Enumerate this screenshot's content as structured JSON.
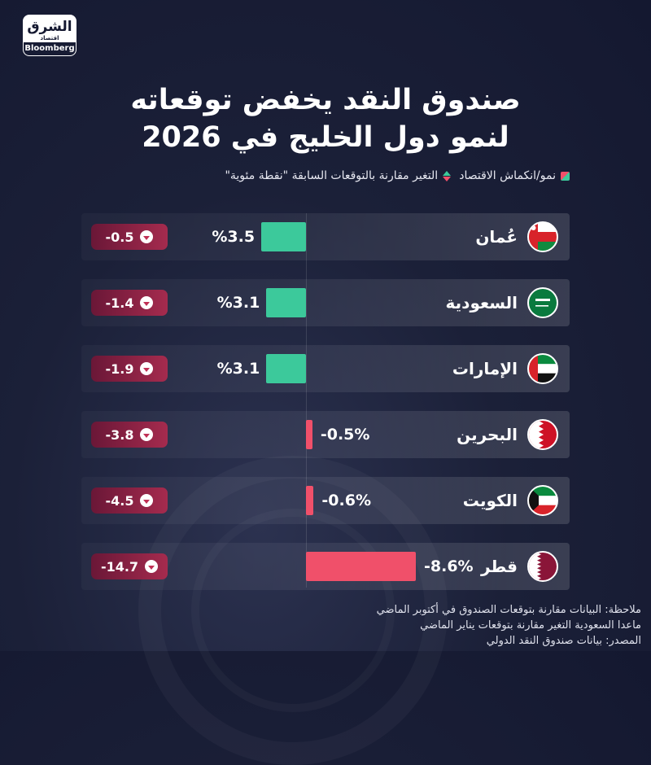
{
  "logo": {
    "arabic": "الشرق",
    "sub": "اقتصاد",
    "brand": "Bloomberg"
  },
  "title_line1": "صندوق النقد يخفض توقعاته",
  "title_line2": "لنمو دول الخليج في 2026",
  "legend": {
    "growth": "نمو/انكماش الاقتصاد",
    "change": "التغير مقارنة بالتوقعات السابقة \"نقطة مئوية\""
  },
  "colors": {
    "positive": "#3cc99b",
    "negative": "#f0506a",
    "badge": "#a52b4e"
  },
  "chart_data": {
    "type": "bar",
    "orientation": "horizontal",
    "categories": [
      "عُمان",
      "السعودية",
      "الإمارات",
      "البحرين",
      "الكويت",
      "قطر"
    ],
    "series": [
      {
        "name": "نمو/انكماش الاقتصاد",
        "values": [
          3.5,
          3.1,
          3.1,
          -0.5,
          -0.6,
          -8.6
        ],
        "labels": [
          "%3.5",
          "%3.1",
          "%3.1",
          "-0.5%",
          "-0.6%",
          "-8.6%"
        ]
      },
      {
        "name": "التغير مقارنة بالتوقعات السابقة \"نقطة مئوية\"",
        "values": [
          -0.5,
          -1.4,
          -1.9,
          -3.8,
          -4.5,
          -14.7
        ],
        "labels": [
          "-0.5",
          "-1.4",
          "-1.9",
          "-3.8",
          "-4.5",
          "-14.7"
        ]
      }
    ],
    "legend_position": "top"
  },
  "notes": [
    "ملاحظة: البيانات مقارنة بتوقعات الصندوق في أكتوبر الماضي",
    "ماعدا السعودية التغير مقارنة بتوقعات يناير الماضي",
    "المصدر: بيانات صندوق النقد الدولي"
  ]
}
